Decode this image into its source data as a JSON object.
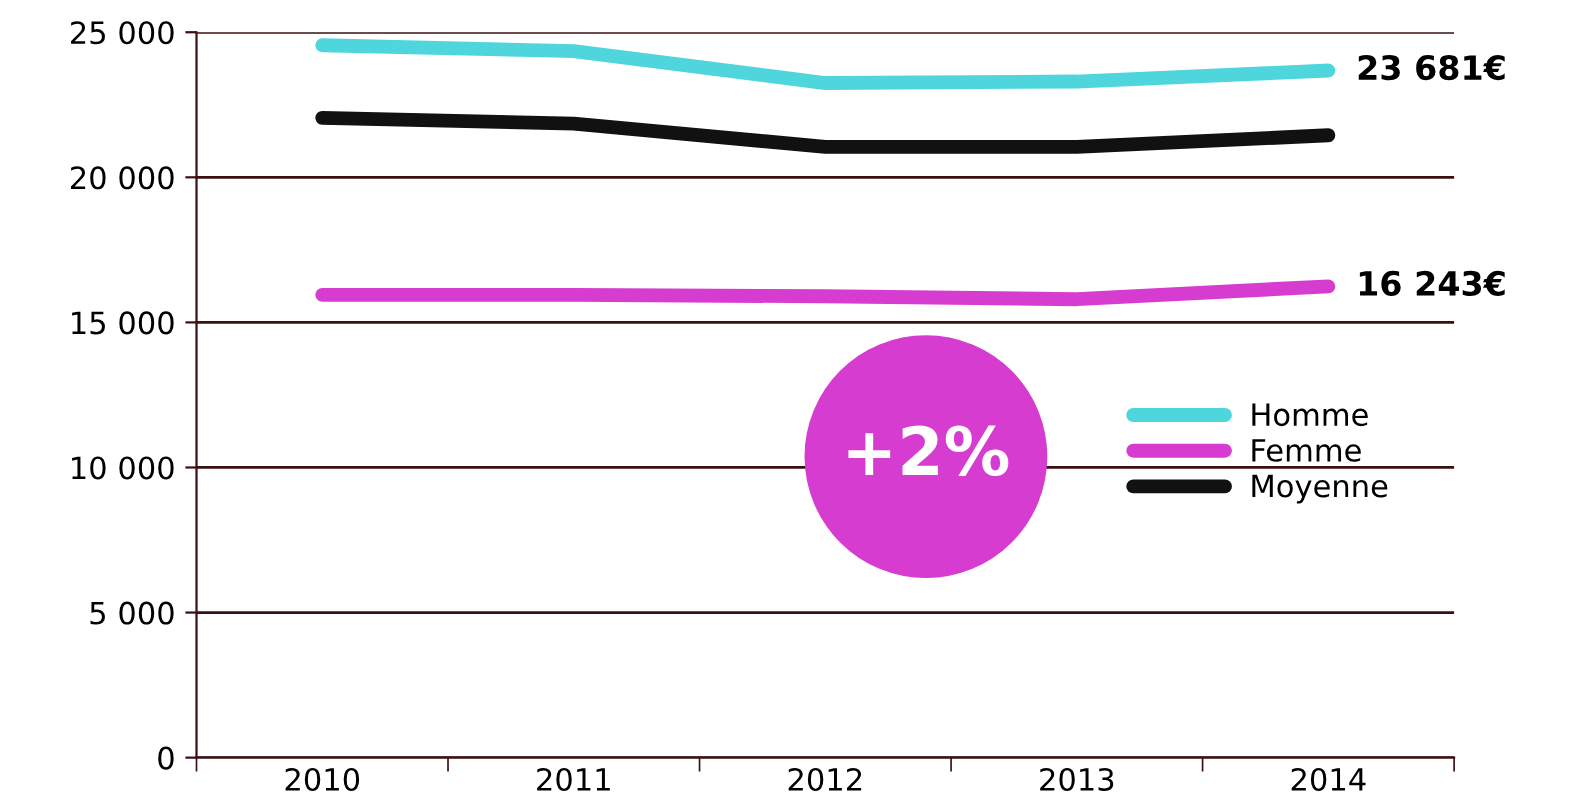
{
  "chart_data": {
    "type": "line",
    "categories": [
      "2010",
      "2011",
      "2012",
      "2013",
      "2014"
    ],
    "series": [
      {
        "name": "Homme",
        "color": "#4fd6dc",
        "values": [
          24550,
          24350,
          23250,
          23300,
          23681
        ],
        "value_labels": [
          null,
          null,
          null,
          null,
          "23 681€"
        ]
      },
      {
        "name": "Femme",
        "color": "#d63ccf",
        "values": [
          15950,
          15950,
          15900,
          15800,
          16243
        ],
        "value_labels": [
          null,
          null,
          null,
          null,
          "16 243€"
        ]
      },
      {
        "name": "Moyenne",
        "color": "#111111",
        "values": [
          22050,
          21850,
          21050,
          21050,
          21450
        ]
      }
    ],
    "ylim": [
      0,
      25000
    ],
    "yticks": [
      {
        "value": 0,
        "label": "0"
      },
      {
        "value": 5000,
        "label": "5 000"
      },
      {
        "value": 10000,
        "label": "10 000"
      },
      {
        "value": 15000,
        "label": "15 000"
      },
      {
        "value": 20000,
        "label": "20 000"
      },
      {
        "value": 25000,
        "label": "25 000"
      }
    ],
    "grid": "y",
    "legend": "right",
    "line_style": "solid",
    "annotations": [
      "+2%"
    ]
  }
}
